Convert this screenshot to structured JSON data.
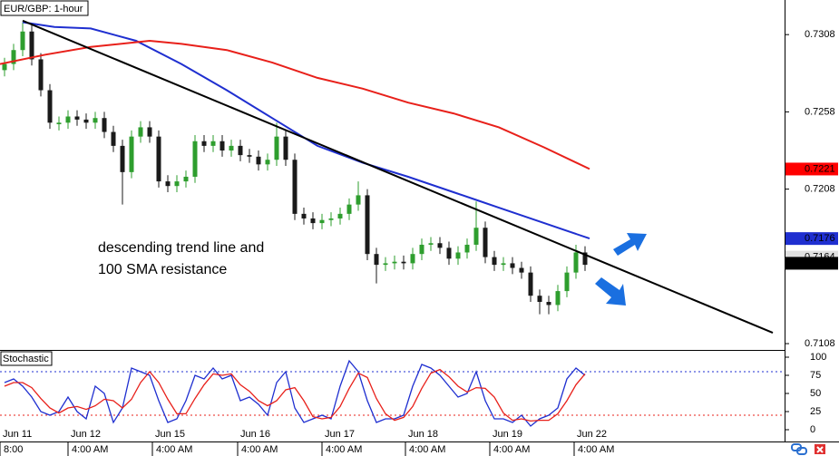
{
  "chart_data": {
    "type": "candlestick",
    "title": "EUR/GBP: 1-hour",
    "annotation": [
      "descending trend line and",
      "100 SMA resistance"
    ],
    "xlim": [
      -0.5,
      86
    ],
    "ylim": [
      0.71045,
      0.73304
    ],
    "yticks": [
      0.7308,
      0.7258,
      0.7208,
      0.7108
    ],
    "up_color": "#2e9e2e",
    "down_color": "#1a1a1a",
    "open": [
      0.7285,
      0.7289,
      0.7298,
      0.731,
      0.7292,
      0.7272,
      0.725,
      0.7251,
      0.7255,
      0.7253,
      0.7251,
      0.7254,
      0.7245,
      0.7236,
      0.7219,
      0.7242,
      0.7248,
      0.7242,
      0.7213,
      0.721,
      0.7213,
      0.7216,
      0.7239,
      0.7236,
      0.7239,
      0.7233,
      0.7236,
      0.723,
      0.7229,
      0.7224,
      0.7227,
      0.7242,
      0.7227,
      0.7192,
      0.7189,
      0.7186,
      0.7188,
      0.7189,
      0.7192,
      0.7198,
      0.7204,
      0.7166,
      0.7159,
      0.716,
      0.7161,
      0.716,
      0.7166,
      0.7172,
      0.7173,
      0.717,
      0.7163,
      0.7167,
      0.7172,
      0.7183,
      0.7164,
      0.7159,
      0.716,
      0.7157,
      0.7154,
      0.7139,
      0.7135,
      0.7133,
      0.7142,
      0.7154,
      0.7167
    ],
    "high": [
      0.7293,
      0.7302,
      0.7316,
      0.7314,
      0.7296,
      0.7276,
      0.7255,
      0.7259,
      0.7259,
      0.7257,
      0.7258,
      0.7258,
      0.7249,
      0.724,
      0.7246,
      0.7252,
      0.7252,
      0.7246,
      0.7217,
      0.7217,
      0.722,
      0.7243,
      0.7243,
      0.7243,
      0.7243,
      0.724,
      0.724,
      0.7234,
      0.7233,
      0.7231,
      0.7251,
      0.7246,
      0.7231,
      0.7196,
      0.7193,
      0.7192,
      0.7193,
      0.7196,
      0.7202,
      0.7213,
      0.7208,
      0.717,
      0.7164,
      0.7165,
      0.7165,
      0.717,
      0.7176,
      0.7177,
      0.7177,
      0.7174,
      0.7171,
      0.7176,
      0.72,
      0.7187,
      0.7168,
      0.7164,
      0.7164,
      0.7161,
      0.7158,
      0.7143,
      0.7139,
      0.7146,
      0.7158,
      0.7172,
      0.7171
    ],
    "low": [
      0.7281,
      0.7285,
      0.7294,
      0.7288,
      0.7268,
      0.7247,
      0.7246,
      0.7247,
      0.7249,
      0.7247,
      0.7247,
      0.7241,
      0.7232,
      0.7198,
      0.7215,
      0.7238,
      0.7238,
      0.7209,
      0.7206,
      0.7206,
      0.7209,
      0.7212,
      0.7232,
      0.7232,
      0.7229,
      0.7229,
      0.7226,
      0.7225,
      0.722,
      0.722,
      0.7223,
      0.7223,
      0.7188,
      0.7185,
      0.7182,
      0.7182,
      0.7184,
      0.7185,
      0.7188,
      0.7194,
      0.7162,
      0.7147,
      0.7155,
      0.7156,
      0.7156,
      0.7156,
      0.7162,
      0.7168,
      0.7166,
      0.7159,
      0.7159,
      0.7163,
      0.7168,
      0.716,
      0.7155,
      0.7155,
      0.7153,
      0.715,
      0.7135,
      0.7127,
      0.7127,
      0.7129,
      0.7138,
      0.715,
      0.7155
    ],
    "close": [
      0.7289,
      0.7298,
      0.731,
      0.7292,
      0.7272,
      0.7251,
      0.7251,
      0.7255,
      0.7253,
      0.7251,
      0.7254,
      0.7245,
      0.7236,
      0.7219,
      0.7242,
      0.7248,
      0.7242,
      0.7213,
      0.721,
      0.7213,
      0.7216,
      0.7239,
      0.7236,
      0.7239,
      0.7233,
      0.7236,
      0.723,
      0.7229,
      0.7224,
      0.7227,
      0.7242,
      0.7227,
      0.7192,
      0.7189,
      0.7186,
      0.7188,
      0.7189,
      0.7192,
      0.7198,
      0.7204,
      0.7166,
      0.7159,
      0.716,
      0.7161,
      0.716,
      0.7166,
      0.7172,
      0.7173,
      0.717,
      0.7163,
      0.7167,
      0.7172,
      0.7183,
      0.7164,
      0.7159,
      0.716,
      0.7157,
      0.7154,
      0.7139,
      0.7135,
      0.7133,
      0.7142,
      0.7154,
      0.7167,
      0.7159
    ],
    "lines": [
      {
        "color": "#1f2fd0",
        "x": [
          2,
          5.5,
          9.5,
          14.5,
          19.5,
          24.5,
          29.5,
          34.5,
          39.5,
          44.5,
          49.5,
          52,
          54.5,
          59.5,
          64.5
        ],
        "values": [
          0.7316,
          0.7313,
          0.7312,
          0.7304,
          0.7289,
          0.7272,
          0.7254,
          0.7236,
          0.7225,
          0.7216,
          0.7206,
          0.7201,
          0.7196,
          0.7186,
          0.7176
        ]
      },
      {
        "color": "#e8201a",
        "x": [
          -0.5,
          4.5,
          9.5,
          16,
          19.5,
          24.5,
          29.5,
          34.5,
          39.5,
          44.5,
          49.5,
          54.5,
          59.5,
          64.5
        ],
        "values": [
          0.7289,
          0.7295,
          0.73,
          0.7304,
          0.7302,
          0.7298,
          0.729,
          0.728,
          0.7273,
          0.7264,
          0.7257,
          0.7248,
          0.7235,
          0.7221
        ]
      },
      {
        "color": "#000000",
        "x": [
          2,
          84.7
        ],
        "values": [
          0.7317,
          0.7115
        ]
      }
    ],
    "price_labels": [
      {
        "value": 0.7221,
        "color": "#ff0000",
        "text_color": "#ffffff"
      },
      {
        "value": 0.7176,
        "color": "#1f2fd0",
        "text_color": "#ffffff"
      },
      {
        "value": 0.7164,
        "color": "#e0e0e0",
        "text_color": "#000000"
      },
      {
        "value": 0.716,
        "color": "#000000",
        "text_color": "#ffffff"
      }
    ],
    "xticks": [
      {
        "value": -0.5,
        "label": "Jun 11"
      },
      {
        "value": 7,
        "label": "Jun 12"
      },
      {
        "value": 16.3,
        "label": "Jun 15"
      },
      {
        "value": 25.7,
        "label": "Jun 16"
      },
      {
        "value": 35,
        "label": "Jun 17"
      },
      {
        "value": 44.2,
        "label": "Jun 18"
      },
      {
        "value": 53.5,
        "label": "Jun 19"
      },
      {
        "value": 62.8,
        "label": "Jun 22"
      }
    ],
    "xticks_minor": [
      {
        "value": -0.5,
        "label": "8:00"
      },
      {
        "value": 7,
        "label": "4:00 AM"
      },
      {
        "value": 16.3,
        "label": "4:00 AM"
      },
      {
        "value": 25.7,
        "label": "4:00 AM"
      },
      {
        "value": 35,
        "label": "4:00 AM"
      },
      {
        "value": 44.2,
        "label": "4:00 AM"
      },
      {
        "value": 53.5,
        "label": "4:00 AM"
      },
      {
        "value": 62.8,
        "label": "4:00 AM"
      }
    ],
    "stochastic": {
      "title": "Stochastic",
      "ylim": [
        -13.75,
        107.5
      ],
      "yticks": [
        100,
        75,
        50,
        25,
        0
      ],
      "levels": [
        {
          "value": 80,
          "color": "#1f2fd0"
        },
        {
          "value": 20,
          "color": "#e8201a"
        }
      ],
      "series": [
        {
          "color": "#1f2fd0",
          "values": [
            65,
            70,
            60,
            45,
            25,
            20,
            25,
            45,
            25,
            15,
            60,
            50,
            10,
            30,
            85,
            80,
            75,
            40,
            10,
            15,
            40,
            75,
            70,
            85,
            70,
            75,
            40,
            45,
            35,
            20,
            65,
            80,
            30,
            10,
            15,
            20,
            15,
            60,
            95,
            80,
            40,
            10,
            15,
            15,
            20,
            60,
            90,
            85,
            75,
            60,
            45,
            50,
            80,
            40,
            15,
            15,
            10,
            20,
            5,
            15,
            20,
            30,
            70,
            85,
            75
          ]
        },
        {
          "color": "#e8201a",
          "values": [
            60,
            65,
            65,
            58,
            43,
            30,
            23,
            30,
            32,
            28,
            33,
            42,
            40,
            30,
            42,
            65,
            80,
            65,
            42,
            22,
            22,
            43,
            62,
            77,
            75,
            77,
            62,
            53,
            40,
            33,
            40,
            55,
            58,
            40,
            18,
            15,
            17,
            32,
            57,
            78,
            72,
            43,
            22,
            13,
            17,
            32,
            57,
            78,
            83,
            73,
            60,
            52,
            58,
            57,
            45,
            23,
            13,
            15,
            12,
            13,
            13,
            22,
            40,
            62,
            77
          ]
        }
      ]
    }
  }
}
